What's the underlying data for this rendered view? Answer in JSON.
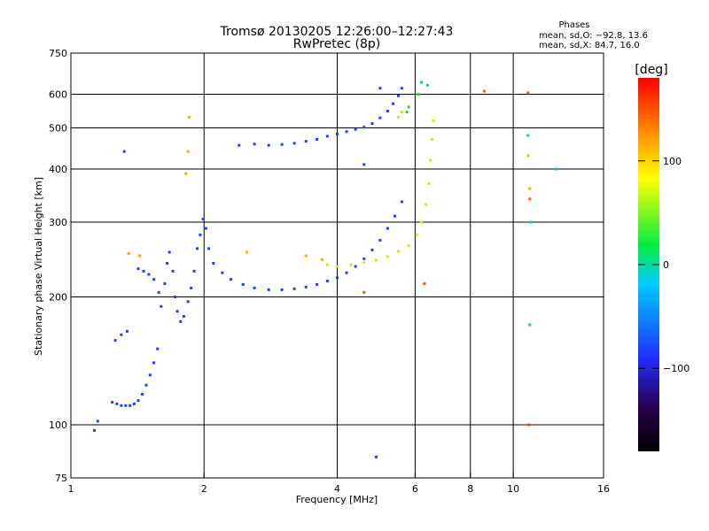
{
  "chart_data": {
    "type": "scatter",
    "title": "Tromsø 20130205 12:26:00–12:27:43",
    "subtitle": "RwPretec (8p)",
    "xlabel": "Frequency [MHz]",
    "ylabel": "Stationary phase Virtual Height [km]",
    "x_scale": "log2",
    "y_scale": "log",
    "xlim": [
      1,
      16
    ],
    "ylim": [
      75,
      750
    ],
    "x_ticks": [
      1,
      2,
      4,
      6,
      8,
      10,
      16
    ],
    "x_tick_labels": [
      "1",
      "2",
      "4",
      "6",
      "8",
      "10",
      "16"
    ],
    "y_ticks": [
      75,
      100,
      200,
      300,
      400,
      500,
      600,
      750
    ],
    "y_tick_labels": [
      "75",
      "100",
      "200",
      "300",
      "400",
      "500",
      "600",
      "750"
    ],
    "grid": true,
    "info": {
      "header": "Phases",
      "line1": "mean, sd,O: −92.8, 13.6",
      "line2": "mean, sd,X: 84.7, 16.0"
    },
    "colorbar": {
      "label": "[deg]",
      "range": [
        -180,
        180
      ],
      "ticks": [
        100,
        0,
        -100
      ],
      "tick_labels": [
        "100",
        "0",
        "−100"
      ],
      "colors": [
        "#000000",
        "#2a0050",
        "#2030ff",
        "#00ccff",
        "#00ee40",
        "#ffff00",
        "#ff8800",
        "#ff0000"
      ]
    },
    "series": [
      {
        "color": "#1a40ff",
        "points": [
          [
            1.13,
            97
          ],
          [
            1.15,
            102
          ],
          [
            1.24,
            113
          ],
          [
            1.27,
            112
          ],
          [
            1.3,
            111
          ],
          [
            1.33,
            111
          ],
          [
            1.36,
            111
          ],
          [
            1.39,
            112
          ],
          [
            1.42,
            114
          ],
          [
            1.45,
            118
          ],
          [
            1.48,
            124
          ],
          [
            1.51,
            131
          ],
          [
            1.54,
            140
          ],
          [
            1.57,
            151
          ],
          [
            1.26,
            158
          ],
          [
            1.3,
            163
          ],
          [
            1.34,
            166
          ],
          [
            1.42,
            233
          ],
          [
            1.46,
            230
          ],
          [
            1.5,
            226
          ],
          [
            1.54,
            220
          ],
          [
            1.58,
            205
          ],
          [
            1.6,
            190
          ],
          [
            1.63,
            215
          ],
          [
            1.65,
            240
          ],
          [
            1.67,
            255
          ],
          [
            1.7,
            230
          ],
          [
            1.72,
            200
          ],
          [
            1.74,
            185
          ],
          [
            1.77,
            175
          ],
          [
            1.8,
            180
          ],
          [
            1.84,
            195
          ],
          [
            1.87,
            210
          ],
          [
            1.9,
            230
          ],
          [
            1.93,
            260
          ],
          [
            1.96,
            280
          ],
          [
            1.99,
            305
          ],
          [
            2.02,
            290
          ],
          [
            2.05,
            260
          ],
          [
            2.1,
            240
          ],
          [
            2.2,
            228
          ],
          [
            2.3,
            220
          ],
          [
            2.45,
            214
          ],
          [
            2.6,
            210
          ],
          [
            2.8,
            208
          ],
          [
            3.0,
            208
          ],
          [
            3.2,
            209
          ],
          [
            3.4,
            211
          ],
          [
            3.6,
            214
          ],
          [
            3.8,
            218
          ],
          [
            4.0,
            222
          ],
          [
            4.2,
            228
          ],
          [
            4.4,
            236
          ],
          [
            4.6,
            246
          ],
          [
            4.8,
            258
          ],
          [
            5.0,
            272
          ],
          [
            5.2,
            290
          ],
          [
            5.4,
            310
          ],
          [
            5.6,
            335
          ],
          [
            2.4,
            455
          ],
          [
            2.6,
            458
          ],
          [
            2.8,
            455
          ],
          [
            3.0,
            457
          ],
          [
            3.2,
            460
          ],
          [
            3.4,
            465
          ],
          [
            3.6,
            470
          ],
          [
            3.8,
            478
          ],
          [
            4.0,
            484
          ],
          [
            4.2,
            490
          ],
          [
            4.4,
            496
          ],
          [
            4.6,
            502
          ],
          [
            4.8,
            512
          ],
          [
            5.0,
            528
          ],
          [
            5.2,
            548
          ],
          [
            5.35,
            570
          ],
          [
            5.5,
            595
          ],
          [
            5.6,
            620
          ],
          [
            1.32,
            440
          ],
          [
            4.6,
            410
          ],
          [
            5.0,
            620
          ],
          [
            4.9,
            84
          ]
        ]
      },
      {
        "color": "#d8e800",
        "points": [
          [
            3.8,
            238
          ],
          [
            4.0,
            236
          ],
          [
            4.3,
            238
          ],
          [
            4.6,
            241
          ],
          [
            4.9,
            244
          ],
          [
            5.2,
            249
          ],
          [
            5.5,
            256
          ],
          [
            5.8,
            264
          ],
          [
            6.05,
            280
          ],
          [
            6.2,
            300
          ],
          [
            6.35,
            330
          ],
          [
            6.45,
            370
          ],
          [
            6.5,
            420
          ],
          [
            6.55,
            470
          ],
          [
            6.6,
            520
          ],
          [
            5.5,
            530
          ],
          [
            5.6,
            545
          ]
        ]
      },
      {
        "color": "#ffaa00",
        "points": [
          [
            1.35,
            253
          ],
          [
            1.43,
            250
          ],
          [
            2.5,
            255
          ],
          [
            3.4,
            250
          ],
          [
            3.7,
            245
          ],
          [
            1.84,
            440
          ],
          [
            1.85,
            530
          ],
          [
            1.82,
            390
          ],
          [
            10.8,
            430
          ],
          [
            10.9,
            360
          ]
        ]
      },
      {
        "color": "#ff5500",
        "points": [
          [
            4.6,
            205
          ],
          [
            6.3,
            215
          ],
          [
            8.6,
            610
          ],
          [
            10.8,
            605
          ],
          [
            10.85,
            100
          ],
          [
            10.9,
            340
          ]
        ]
      },
      {
        "color": "#00cccc",
        "points": [
          [
            6.2,
            640
          ],
          [
            6.4,
            630
          ],
          [
            10.9,
            172
          ],
          [
            10.95,
            300
          ],
          [
            12.5,
            400
          ],
          [
            10.8,
            480
          ]
        ]
      },
      {
        "color": "#22dd22",
        "points": [
          [
            5.75,
            545
          ],
          [
            5.8,
            560
          ],
          [
            6.1,
            600
          ]
        ]
      }
    ]
  }
}
